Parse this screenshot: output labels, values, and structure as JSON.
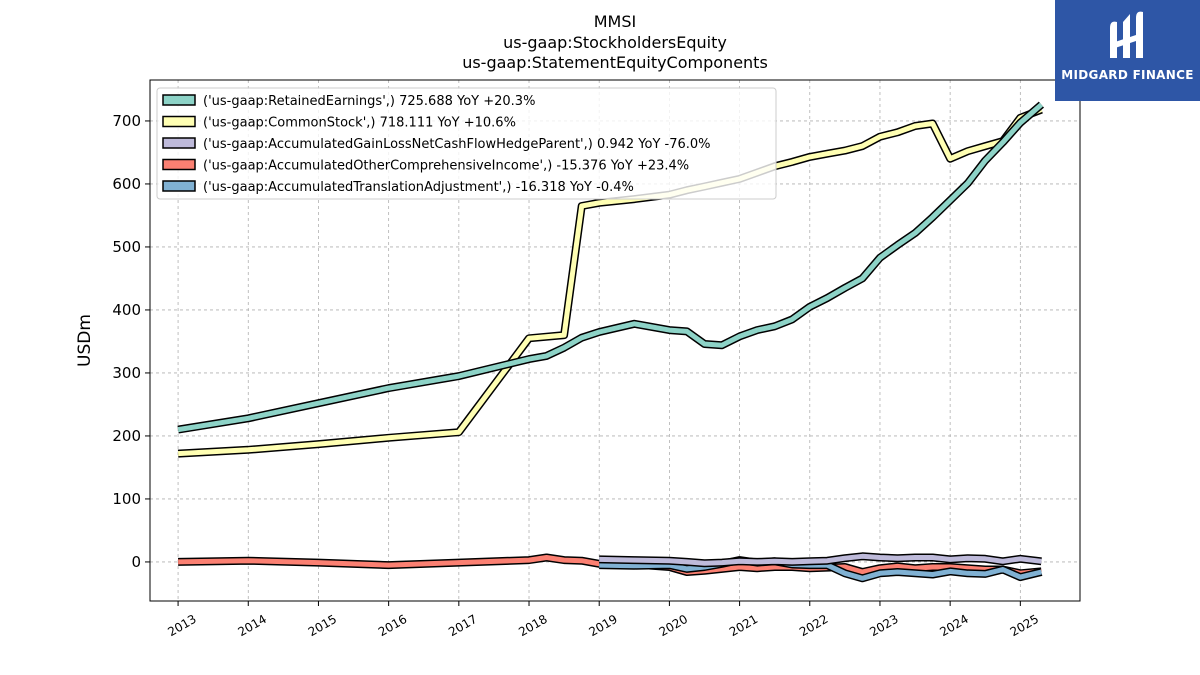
{
  "brand": {
    "name": "MIDGARD FINANCE",
    "bg": "#2e56a6",
    "fg": "#ffffff"
  },
  "chart_data": {
    "type": "line",
    "title_lines": [
      "MMSI",
      "us-gaap:StockholdersEquity",
      "us-gaap:StatementEquityComponents"
    ],
    "ylabel": "USDm",
    "xlabel": "",
    "xlim": [
      2012.6,
      2025.85
    ],
    "ylim": [
      -62,
      765
    ],
    "yticks": [
      0,
      100,
      200,
      300,
      400,
      500,
      600,
      700
    ],
    "xticks": [
      "2013",
      "2014",
      "2015",
      "2016",
      "2017",
      "2018",
      "2019",
      "2020",
      "2021",
      "2022",
      "2023",
      "2024",
      "2025"
    ],
    "grid": true,
    "legend_position": "top-left",
    "series": [
      {
        "name": "('us-gaap:RetainedEarnings',) 725.688 YoY +20.3%",
        "color": "#8dd3c7",
        "x": [
          2013.0,
          2014.0,
          2015.0,
          2016.0,
          2017.0,
          2018.0,
          2018.25,
          2018.5,
          2018.75,
          2019.0,
          2019.5,
          2020.0,
          2020.25,
          2020.5,
          2020.75,
          2021.0,
          2021.25,
          2021.5,
          2021.75,
          2022.0,
          2022.25,
          2022.5,
          2022.75,
          2023.0,
          2023.25,
          2023.5,
          2023.75,
          2024.0,
          2024.25,
          2024.5,
          2024.75,
          2025.0,
          2025.3
        ],
        "values": [
          210,
          228,
          252,
          276,
          295,
          322,
          327,
          340,
          356,
          365,
          378,
          368,
          366,
          346,
          344,
          358,
          368,
          374,
          385,
          405,
          419,
          435,
          450,
          483,
          503,
          522,
          547,
          574,
          601,
          637,
          666,
          697,
          726
        ]
      },
      {
        "name": "('us-gaap:CommonStock',) 718.111 YoY +10.6%",
        "color": "#ffffb3",
        "x": [
          2013.0,
          2014.0,
          2015.0,
          2016.0,
          2017.0,
          2018.0,
          2018.5,
          2018.75,
          2019.0,
          2019.5,
          2020.0,
          2020.25,
          2020.5,
          2020.75,
          2021.0,
          2021.25,
          2021.5,
          2021.75,
          2022.0,
          2022.25,
          2022.5,
          2022.75,
          2023.0,
          2023.25,
          2023.5,
          2023.75,
          2024.0,
          2024.25,
          2024.5,
          2024.75,
          2025.0,
          2025.3
        ],
        "values": [
          172,
          178,
          187,
          197,
          206,
          355,
          360,
          565,
          570,
          576,
          583,
          590,
          596,
          602,
          608,
          618,
          628,
          635,
          643,
          648,
          653,
          660,
          675,
          682,
          692,
          696,
          640,
          652,
          660,
          668,
          705,
          718
        ]
      },
      {
        "name": "('us-gaap:AccumulatedGainLossNetCashFlowHedgeParent',) 0.942 YoY -76.0%",
        "color": "#bebada",
        "x": [
          2019.0,
          2019.5,
          2020.0,
          2020.25,
          2020.5,
          2020.75,
          2021.0,
          2021.25,
          2021.5,
          2021.75,
          2022.0,
          2022.25,
          2022.5,
          2022.75,
          2023.0,
          2023.25,
          2023.5,
          2023.75,
          2024.0,
          2024.25,
          2024.5,
          2024.75,
          2025.0,
          2025.3
        ],
        "values": [
          4,
          3,
          2,
          0,
          -2,
          -1,
          1,
          0,
          1,
          0,
          1,
          2,
          6,
          9,
          7,
          6,
          7,
          7,
          4,
          6,
          5,
          1,
          5,
          1
        ]
      },
      {
        "name": "('us-gaap:AccumulatedOtherComprehensiveIncome',) -15.376 YoY +23.4%",
        "color": "#fb8072",
        "x": [
          2013.0,
          2014.0,
          2015.0,
          2016.0,
          2017.0,
          2018.0,
          2018.25,
          2018.5,
          2018.75,
          2019.0,
          2019.5,
          2020.0,
          2020.25,
          2020.5,
          2020.75,
          2021.0,
          2021.25,
          2021.5,
          2021.75,
          2022.0,
          2022.25,
          2022.5,
          2022.75,
          2023.0,
          2023.25,
          2023.5,
          2023.75,
          2024.0,
          2024.25,
          2024.5,
          2024.75,
          2025.0,
          2025.3
        ],
        "values": [
          0,
          2,
          -1,
          -5,
          -1,
          3,
          7,
          3,
          2,
          -3,
          -4,
          -8,
          -16,
          -14,
          -11,
          -8,
          -10,
          -8,
          -8,
          -10,
          -9,
          -8,
          -16,
          -10,
          -7,
          -10,
          -8,
          -8,
          -10,
          -12,
          -12,
          -18,
          -15
        ]
      },
      {
        "name": "('us-gaap:AccumulatedTranslationAdjustment',) -16.318 YoY -0.4%",
        "color": "#80b1d3",
        "x": [
          2019.0,
          2019.5,
          2020.0,
          2020.25,
          2020.5,
          2020.75,
          2021.0,
          2021.25,
          2021.5,
          2021.75,
          2022.0,
          2022.25,
          2022.5,
          2022.75,
          2023.0,
          2023.25,
          2023.5,
          2023.75,
          2024.0,
          2024.25,
          2024.5,
          2024.75,
          2025.0,
          2025.3
        ],
        "values": [
          -5,
          -6,
          -5,
          -11,
          -8,
          -3,
          3,
          -1,
          1,
          -4,
          -5,
          -5,
          -18,
          -26,
          -18,
          -16,
          -18,
          -20,
          -15,
          -18,
          -19,
          -12,
          -24,
          -16
        ]
      }
    ]
  }
}
